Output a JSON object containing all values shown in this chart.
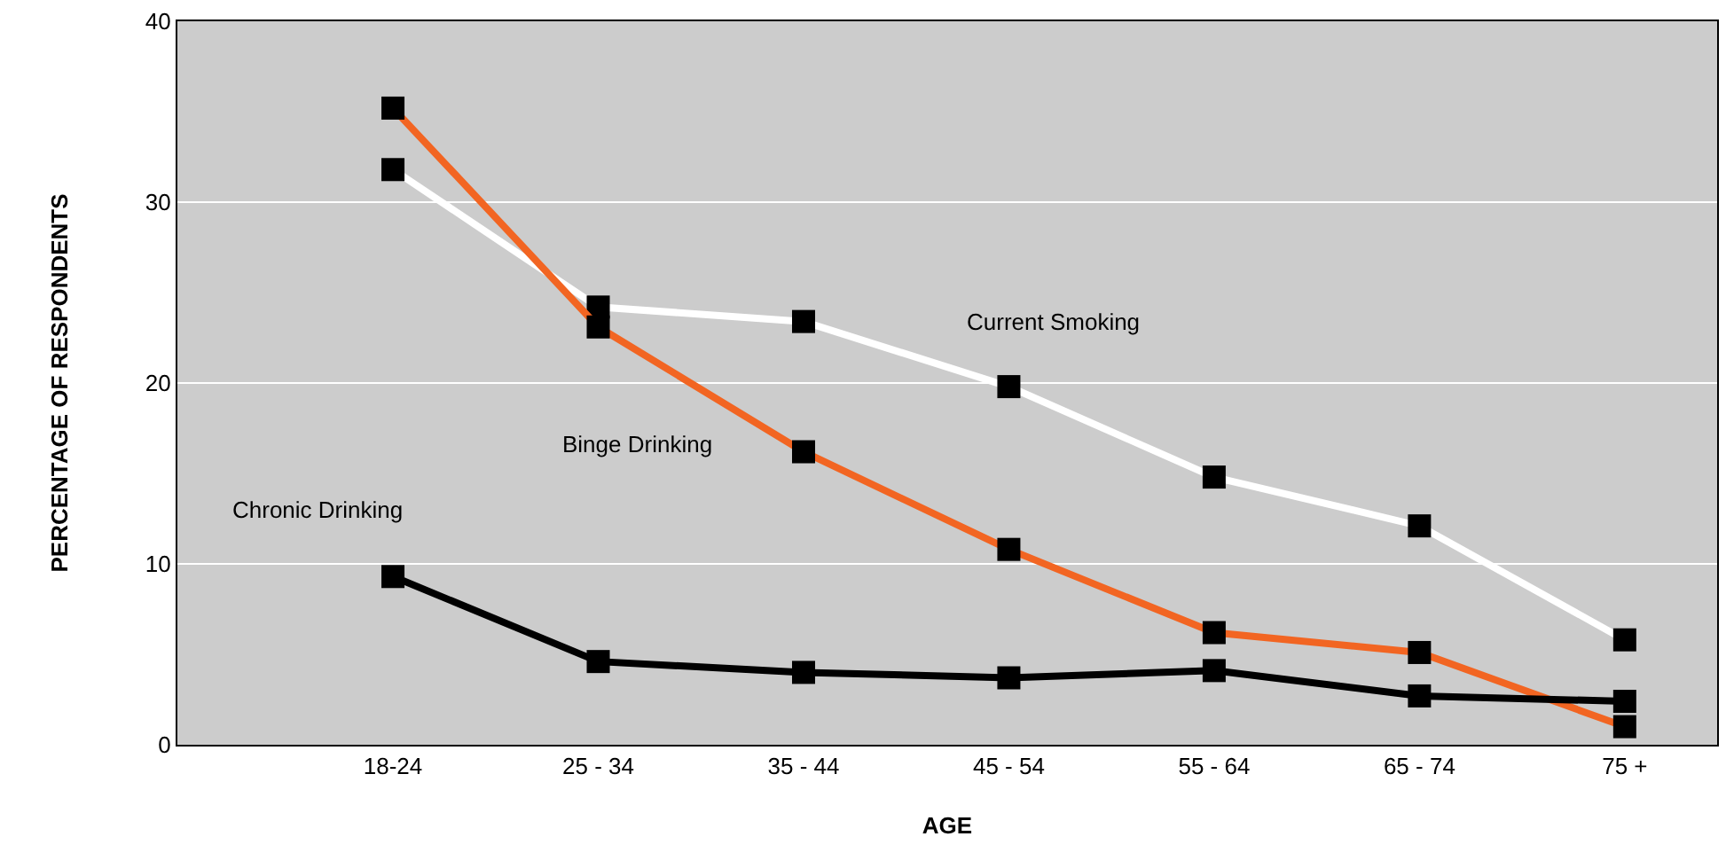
{
  "chart_data": {
    "type": "line",
    "xlabel": "AGE",
    "ylabel": "PERCENTAGE OF RESPONDENTS",
    "categories": [
      "18-24",
      "25 - 34",
      "35 - 44",
      "45 - 54",
      "55 - 64",
      "65 - 74",
      "75 +"
    ],
    "series": [
      {
        "name": "Current Smoking",
        "color": "#ffffff",
        "values": [
          31.8,
          24.2,
          23.4,
          19.8,
          14.8,
          12.1,
          5.8
        ]
      },
      {
        "name": "Binge Drinking",
        "color": "#f26522",
        "values": [
          35.2,
          23.1,
          16.2,
          10.8,
          6.2,
          5.1,
          1.0
        ]
      },
      {
        "name": "Chronic Drinking",
        "color": "#000000",
        "values": [
          9.3,
          4.6,
          4.0,
          3.7,
          4.1,
          2.7,
          2.4
        ]
      }
    ],
    "ylim": [
      0,
      40
    ],
    "yticks": [
      0,
      10,
      20,
      30,
      40
    ],
    "grid": "y",
    "legend": false,
    "marker": "square",
    "line_style": "solid"
  }
}
